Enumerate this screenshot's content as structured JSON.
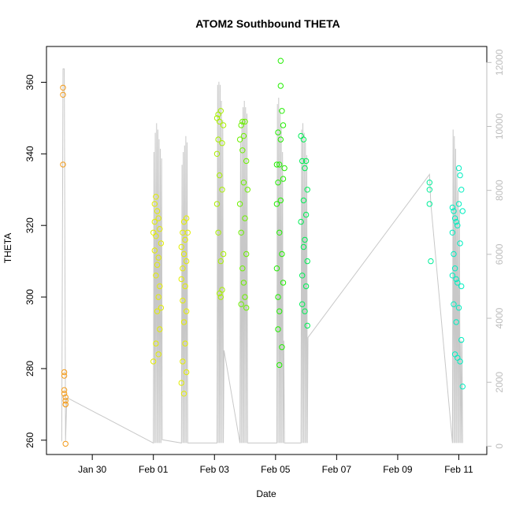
{
  "chart_data": {
    "type": "scatter",
    "title": "ATOM2 Southbound THETA",
    "xlabel": "Date",
    "ylabel": "THETA",
    "x_axis": {
      "type": "date",
      "range": [
        "2012-01-28T12:00",
        "2012-02-11T22:00"
      ],
      "ticks": [
        "2012-01-30",
        "2012-02-01",
        "2012-02-03",
        "2012-02-05",
        "2012-02-07",
        "2012-02-09",
        "2012-02-11"
      ],
      "tick_labels": [
        "Jan 30",
        "Feb 01",
        "Feb 03",
        "Feb 05",
        "Feb 07",
        "Feb 09",
        "Feb 11"
      ]
    },
    "y_axis": {
      "range": [
        256,
        370
      ],
      "ticks": [
        260,
        280,
        300,
        320,
        340,
        360
      ],
      "tick_labels": [
        "260",
        "280",
        "300",
        "320",
        "340",
        "360"
      ]
    },
    "y2_axis": {
      "color": "#bdbdbd",
      "range": [
        -260,
        12500
      ],
      "ticks": [
        0,
        2000,
        4000,
        6000,
        8000,
        10000,
        12000
      ],
      "tick_labels": [
        "0",
        "2000",
        "4000",
        "6000",
        "8000",
        "10000",
        "12000"
      ]
    },
    "grid": false,
    "legend": "none",
    "series": [
      {
        "color": "#f39b1a",
        "marker": "open-circle",
        "x": [
          "2012-01-29T01:00",
          "2012-01-29T01:00",
          "2012-01-29T01:00",
          "2012-01-29T02:00",
          "2012-01-29T02:00",
          "2012-01-29T02:00",
          "2012-01-29T02:00",
          "2012-01-29T03:00",
          "2012-01-29T03:00",
          "2012-01-29T03:00",
          "2012-01-29T03:00",
          "2012-01-29T03:00"
        ],
        "y": [
          358.5,
          356.5,
          337,
          279,
          278,
          274,
          273,
          272,
          271,
          270,
          270,
          259
        ]
      },
      {
        "color": "#e3ee00",
        "marker": "open-circle",
        "x": [
          "2012-02-01T00:00",
          "2012-02-01T00:00",
          "2012-02-01T01:00",
          "2012-02-01T01:00",
          "2012-02-01T01:00",
          "2012-02-01T02:00",
          "2012-02-01T02:00",
          "2012-02-01T02:00",
          "2012-02-01T02:00",
          "2012-02-01T03:00",
          "2012-02-01T03:00",
          "2012-02-01T03:00",
          "2012-02-01T04:00",
          "2012-02-01T04:00",
          "2012-02-01T04:00",
          "2012-02-01T04:00",
          "2012-02-01T05:00",
          "2012-02-01T05:00",
          "2012-02-01T05:00",
          "2012-02-01T06:00",
          "2012-02-01T06:00",
          "2012-02-01T22:00",
          "2012-02-01T22:00",
          "2012-02-01T22:00",
          "2012-02-01T23:00",
          "2012-02-01T23:00",
          "2012-02-01T23:00",
          "2012-02-01T23:00",
          "2012-02-02T00:00",
          "2012-02-02T00:00",
          "2012-02-02T00:00",
          "2012-02-02T00:00",
          "2012-02-02T01:00",
          "2012-02-02T01:00",
          "2012-02-02T01:00",
          "2012-02-02T02:00",
          "2012-02-02T02:00",
          "2012-02-02T02:00",
          "2012-02-02T02:00",
          "2012-02-02T03:00"
        ],
        "y": [
          318,
          282,
          326,
          321,
          313,
          328,
          317,
          306,
          287,
          324,
          309,
          296,
          322,
          311,
          300,
          284,
          319,
          303,
          291,
          315,
          297,
          314,
          305,
          276,
          318,
          308,
          299,
          282,
          321,
          312,
          293,
          273,
          316,
          303,
          287,
          322,
          310,
          296,
          279,
          318
        ]
      },
      {
        "color": "#a8f000",
        "marker": "open-circle",
        "x": [
          "2012-02-03T02:00",
          "2012-02-03T02:00",
          "2012-02-03T02:00",
          "2012-02-03T03:00",
          "2012-02-03T03:00",
          "2012-02-03T03:00",
          "2012-02-03T04:00",
          "2012-02-03T04:00",
          "2012-02-03T04:00",
          "2012-02-03T05:00",
          "2012-02-03T05:00",
          "2012-02-03T05:00",
          "2012-02-03T06:00",
          "2012-02-03T06:00",
          "2012-02-03T06:00",
          "2012-02-03T07:00",
          "2012-02-03T07:00"
        ],
        "y": [
          350,
          340,
          326,
          351,
          344,
          318,
          301,
          349,
          334,
          310,
          300,
          352,
          343,
          330,
          302,
          348,
          312
        ]
      },
      {
        "color": "#6cf000",
        "marker": "open-circle",
        "x": [
          "2012-02-03T20:00",
          "2012-02-03T20:00",
          "2012-02-03T21:00",
          "2012-02-03T21:00",
          "2012-02-03T21:00",
          "2012-02-03T22:00",
          "2012-02-03T22:00",
          "2012-02-03T22:00",
          "2012-02-03T23:00",
          "2012-02-03T23:00",
          "2012-02-03T23:00",
          "2012-02-04T00:00",
          "2012-02-04T00:00",
          "2012-02-04T00:00",
          "2012-02-04T01:00",
          "2012-02-04T01:00",
          "2012-02-04T01:00",
          "2012-02-04T02:00"
        ],
        "y": [
          344,
          326,
          348,
          318,
          298,
          341,
          308,
          349,
          332,
          304,
          345,
          322,
          300,
          349,
          338,
          312,
          297,
          330
        ]
      },
      {
        "color": "#22ee00",
        "marker": "open-circle",
        "x": [
          "2012-02-05T01:00",
          "2012-02-05T01:00",
          "2012-02-05T01:00",
          "2012-02-05T02:00",
          "2012-02-05T02:00",
          "2012-02-05T02:00",
          "2012-02-05T02:00",
          "2012-02-05T03:00",
          "2012-02-05T03:00",
          "2012-02-05T03:00",
          "2012-02-05T03:00",
          "2012-02-05T04:00",
          "2012-02-05T04:00",
          "2012-02-05T04:00",
          "2012-02-05T04:00",
          "2012-02-05T05:00",
          "2012-02-05T05:00",
          "2012-02-05T05:00",
          "2012-02-05T06:00",
          "2012-02-05T06:00",
          "2012-02-05T06:00",
          "2012-02-05T07:00"
        ],
        "y": [
          337,
          326,
          308,
          346,
          332,
          300,
          291,
          337,
          318,
          296,
          281,
          366,
          359,
          344,
          327,
          352,
          312,
          286,
          348,
          333,
          304,
          336
        ]
      },
      {
        "color": "#00ee55",
        "marker": "open-circle",
        "x": [
          "2012-02-05T20:00",
          "2012-02-05T20:00",
          "2012-02-05T21:00",
          "2012-02-05T21:00",
          "2012-02-05T21:00",
          "2012-02-05T22:00",
          "2012-02-05T22:00",
          "2012-02-05T22:00",
          "2012-02-05T23:00",
          "2012-02-05T23:00",
          "2012-02-05T23:00",
          "2012-02-06T00:00",
          "2012-02-06T00:00",
          "2012-02-06T00:00",
          "2012-02-06T01:00",
          "2012-02-06T01:00",
          "2012-02-06T01:00"
        ],
        "y": [
          345,
          321,
          338,
          306,
          298,
          344,
          327,
          314,
          336,
          316,
          296,
          338,
          323,
          303,
          330,
          310,
          292
        ]
      },
      {
        "color": "#00ee99",
        "marker": "open-circle",
        "x": [
          "2012-02-10T01:00",
          "2012-02-10T01:00",
          "2012-02-10T01:00",
          "2012-02-10T02:00"
        ],
        "y": [
          332,
          330,
          326,
          310
        ]
      },
      {
        "color": "#00eec0",
        "marker": "open-circle",
        "x": [
          "2012-02-10T19:00",
          "2012-02-10T19:00",
          "2012-02-10T19:00",
          "2012-02-10T20:00",
          "2012-02-10T20:00",
          "2012-02-10T20:00",
          "2012-02-10T21:00",
          "2012-02-10T21:00",
          "2012-02-10T21:00",
          "2012-02-10T22:00",
          "2012-02-10T22:00",
          "2012-02-10T22:00",
          "2012-02-10T23:00",
          "2012-02-10T23:00",
          "2012-02-10T23:00",
          "2012-02-11T00:00",
          "2012-02-11T00:00",
          "2012-02-11T00:00",
          "2012-02-11T01:00",
          "2012-02-11T01:00",
          "2012-02-11T01:00",
          "2012-02-11T02:00",
          "2012-02-11T02:00",
          "2012-02-11T02:00",
          "2012-02-11T03:00",
          "2012-02-11T03:00"
        ],
        "y": [
          325,
          318,
          306,
          324,
          312,
          298,
          322,
          308,
          284,
          321,
          305,
          293,
          320,
          304,
          283,
          336,
          326,
          297,
          334,
          315,
          282,
          330,
          303,
          288,
          324,
          275
        ]
      },
      {
        "color": "#c8c8c8",
        "marker": "line",
        "y_axis": "y2",
        "x": [
          "2012-01-29T00:00",
          "2012-01-29T01:00",
          "2012-01-29T02:00",
          "2012-01-29T03:00",
          "2012-01-29T04:00",
          "2012-01-29T05:00",
          "2012-02-01T00:00",
          "2012-02-01T00:30",
          "2012-02-01T01:00",
          "2012-02-01T01:30",
          "2012-02-01T02:00",
          "2012-02-01T02:30",
          "2012-02-01T03:00",
          "2012-02-01T03:30",
          "2012-02-01T04:00",
          "2012-02-01T04:30",
          "2012-02-01T05:00",
          "2012-02-01T05:30",
          "2012-02-01T06:00",
          "2012-02-01T06:30",
          "2012-02-01T07:00",
          "2012-02-01T22:00",
          "2012-02-01T22:30",
          "2012-02-01T23:00",
          "2012-02-01T23:30",
          "2012-02-02T00:00",
          "2012-02-02T00:30",
          "2012-02-02T01:00",
          "2012-02-02T01:30",
          "2012-02-02T02:00",
          "2012-02-02T02:30",
          "2012-02-02T03:00",
          "2012-02-03T02:00",
          "2012-02-03T02:30",
          "2012-02-03T03:00",
          "2012-02-03T03:30",
          "2012-02-03T04:00",
          "2012-02-03T04:30",
          "2012-02-03T05:00",
          "2012-02-03T05:30",
          "2012-02-03T06:00",
          "2012-02-03T06:30",
          "2012-02-03T07:00",
          "2012-02-03T07:30",
          "2012-02-03T20:00",
          "2012-02-03T20:30",
          "2012-02-03T21:00",
          "2012-02-03T21:30",
          "2012-02-03T22:00",
          "2012-02-03T22:30",
          "2012-02-03T23:00",
          "2012-02-03T23:30",
          "2012-02-04T00:00",
          "2012-02-04T00:30",
          "2012-02-04T01:00",
          "2012-02-04T01:30",
          "2012-02-04T02:00",
          "2012-02-05T01:00",
          "2012-02-05T01:30",
          "2012-02-05T02:00",
          "2012-02-05T02:30",
          "2012-02-05T03:00",
          "2012-02-05T03:30",
          "2012-02-05T04:00",
          "2012-02-05T04:30",
          "2012-02-05T05:00",
          "2012-02-05T05:30",
          "2012-02-05T06:00",
          "2012-02-05T06:30",
          "2012-02-05T07:00",
          "2012-02-05T20:00",
          "2012-02-05T20:30",
          "2012-02-05T21:00",
          "2012-02-05T21:30",
          "2012-02-05T22:00",
          "2012-02-05T22:30",
          "2012-02-05T23:00",
          "2012-02-05T23:30",
          "2012-02-06T00:00",
          "2012-02-06T00:30",
          "2012-02-06T01:00",
          "2012-02-06T01:30",
          "2012-02-10T01:00",
          "2012-02-10T02:00",
          "2012-02-10T19:00",
          "2012-02-10T19:30",
          "2012-02-10T20:00",
          "2012-02-10T20:30",
          "2012-02-10T21:00",
          "2012-02-10T21:30",
          "2012-02-10T22:00",
          "2012-02-10T22:30",
          "2012-02-10T23:00",
          "2012-02-10T23:30",
          "2012-02-11T00:00",
          "2012-02-11T00:30",
          "2012-02-11T01:00",
          "2012-02-11T01:30",
          "2012-02-11T02:00",
          "2012-02-11T02:30",
          "2012-02-11T03:00"
        ],
        "y": [
          150,
          11800,
          11800,
          150,
          1500,
          1500,
          100,
          9200,
          100,
          9800,
          100,
          10100,
          100,
          9900,
          100,
          9600,
          100,
          9300,
          100,
          9000,
          200,
          100,
          8800,
          100,
          9200,
          100,
          9400,
          100,
          9700,
          100,
          9500,
          100,
          100,
          11300,
          100,
          11400,
          100,
          11300,
          100,
          10800,
          100,
          10200,
          100,
          3000,
          100,
          9500,
          100,
          10200,
          100,
          10600,
          100,
          10800,
          100,
          10600,
          100,
          10400,
          100,
          100,
          10700,
          100,
          10900,
          100,
          10500,
          100,
          10000,
          100,
          9200,
          100,
          3300,
          100,
          100,
          9900,
          100,
          10100,
          100,
          9800,
          100,
          9500,
          100,
          9100,
          100,
          3400,
          8500,
          7600,
          100,
          9900,
          100,
          9700,
          100,
          9300,
          100,
          8700,
          100,
          8000,
          100,
          7400,
          100,
          3300,
          100,
          3300,
          100
        ]
      }
    ]
  }
}
